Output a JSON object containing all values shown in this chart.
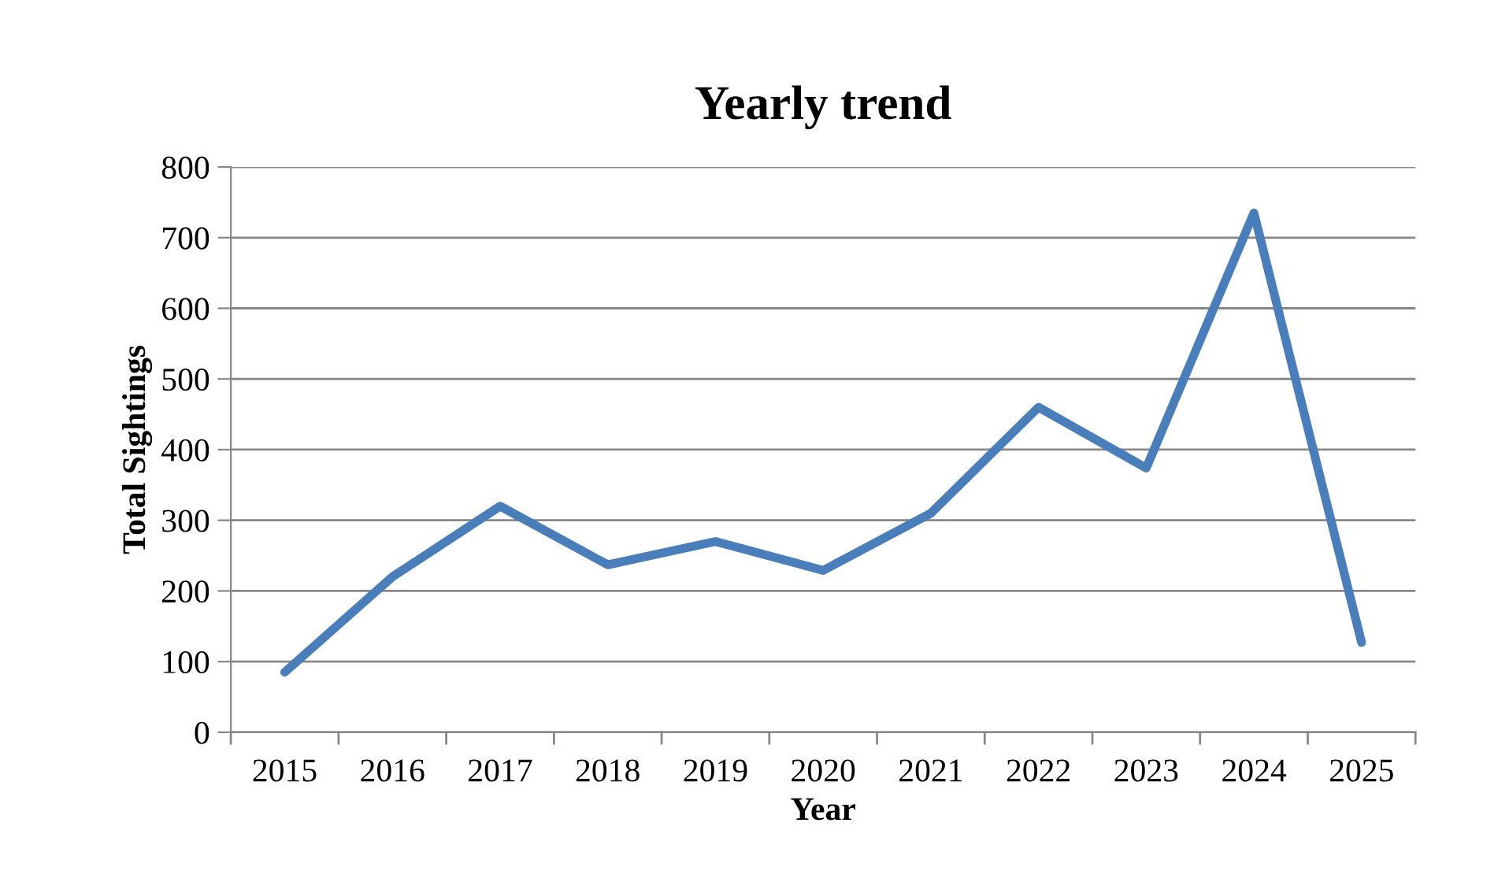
{
  "chart_data": {
    "type": "line",
    "title": "Yearly trend",
    "xlabel": "Year",
    "ylabel": "Total Sightings",
    "categories": [
      "2015",
      "2016",
      "2017",
      "2018",
      "2019",
      "2020",
      "2021",
      "2022",
      "2023",
      "2024",
      "2025"
    ],
    "series": [
      {
        "color": "#4a7ebb",
        "values": [
          85,
          220,
          320,
          237,
          270,
          229,
          310,
          460,
          374,
          735,
          127
        ]
      }
    ],
    "ylim": [
      0,
      800
    ],
    "yticks": [
      0,
      100,
      200,
      300,
      400,
      500,
      600,
      700,
      800
    ],
    "grid": "y",
    "legend": false,
    "marker": "none",
    "line_style": "solid"
  }
}
